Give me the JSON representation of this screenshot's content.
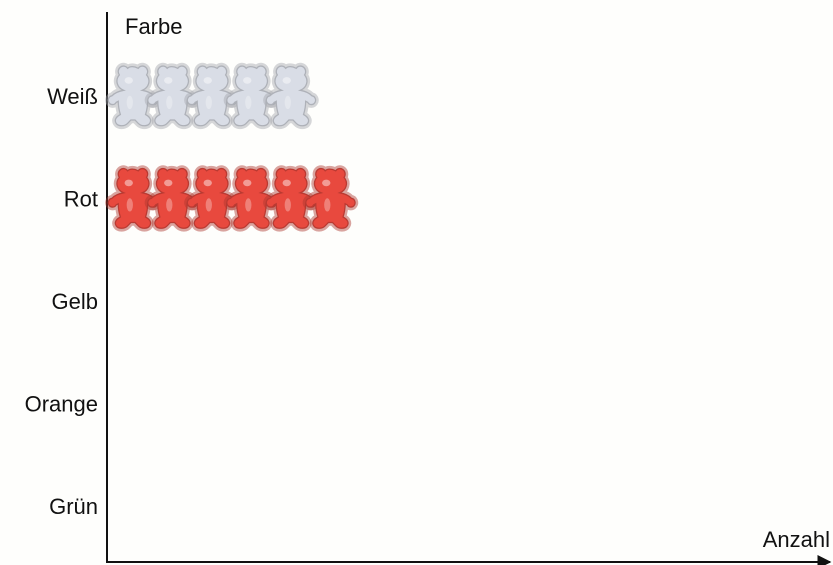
{
  "chart_data": {
    "type": "pictogram",
    "y_label": "Farbe",
    "x_label": "Anzahl",
    "categories": [
      "Weiß",
      "Rot",
      "Gelb",
      "Orange",
      "Grün"
    ],
    "values": [
      5,
      6,
      0,
      0,
      0
    ],
    "colors": [
      "#d9dde6",
      "#e8493e",
      "#f5c400",
      "#f28a1e",
      "#4caf50"
    ]
  }
}
